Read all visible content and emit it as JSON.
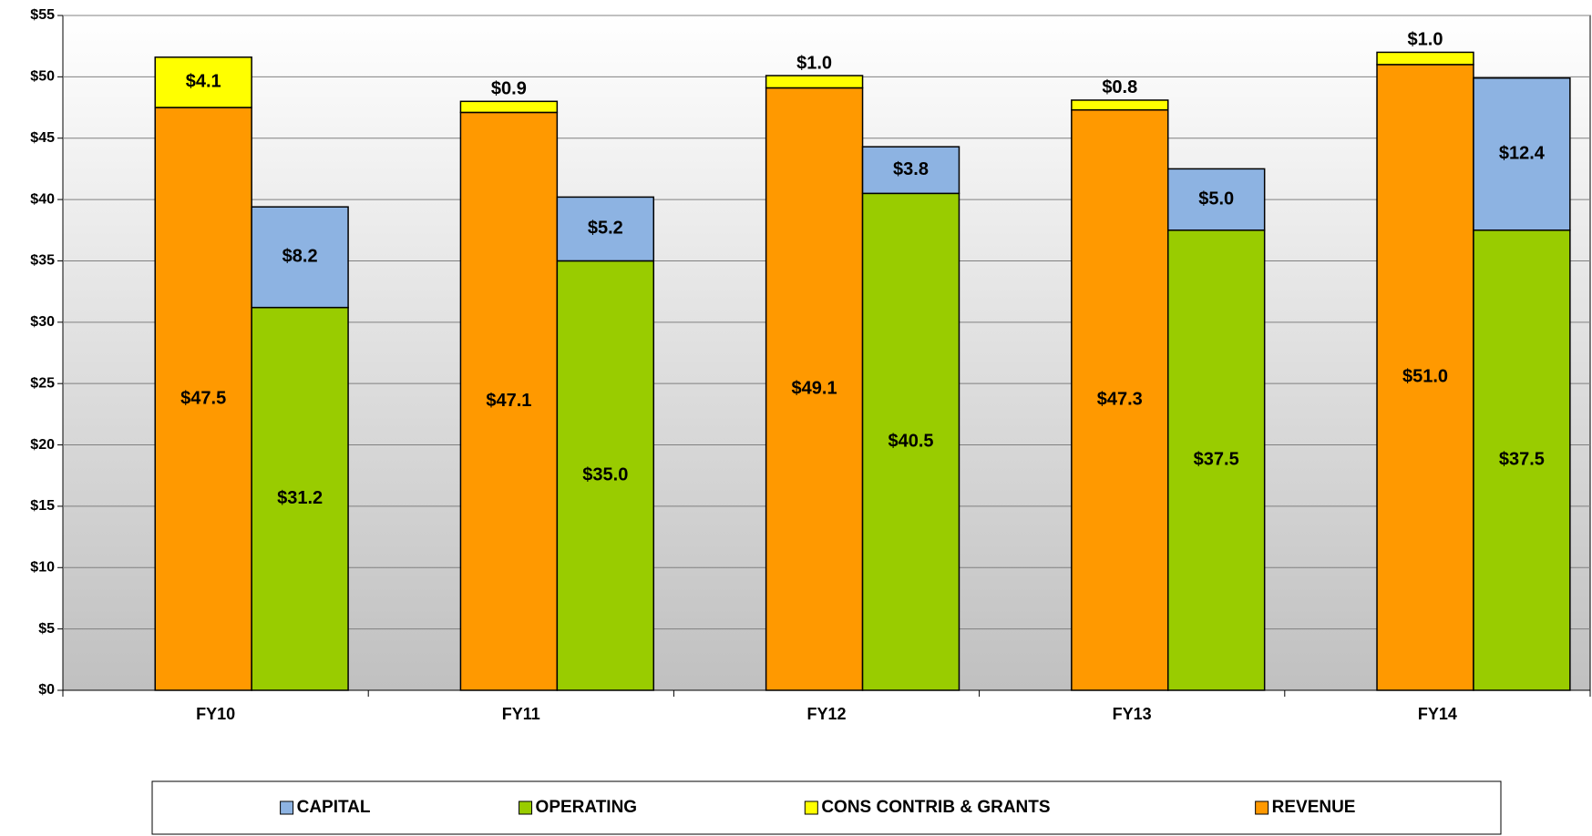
{
  "chart_data": {
    "type": "bar",
    "categories": [
      "FY10",
      "FY11",
      "FY12",
      "FY13",
      "FY14"
    ],
    "series": [
      {
        "name": "CAPITAL",
        "color": "#8db3e2",
        "stack": 1,
        "values": [
          8.2,
          5.2,
          3.8,
          5.0,
          12.4
        ],
        "value_labels": [
          "$8.2",
          "$5.2",
          "$3.8",
          "$5.0",
          "$12.4"
        ]
      },
      {
        "name": "OPERATING",
        "color": "#99cc00",
        "stack": 1,
        "values": [
          31.2,
          35.0,
          40.5,
          37.5,
          37.5
        ],
        "value_labels": [
          "$31.2",
          "$35.0",
          "$40.5",
          "$37.5",
          "$37.5"
        ]
      },
      {
        "name": "CONS CONTRIB & GRANTS",
        "color": "#ffff00",
        "stack": 0,
        "values": [
          4.1,
          0.9,
          1.0,
          0.8,
          1.0
        ],
        "value_labels": [
          "$4.1",
          "$0.9",
          "$1.0",
          "$0.8",
          "$1.0"
        ]
      },
      {
        "name": "REVENUE",
        "color": "#ff9900",
        "stack": 0,
        "values": [
          47.5,
          47.1,
          49.1,
          47.3,
          51.0
        ],
        "value_labels": [
          "$47.5",
          "$47.1",
          "$49.1",
          "$47.3",
          "$51.0"
        ]
      }
    ],
    "ylim": [
      0,
      55
    ],
    "yticks": [
      {
        "value": 0,
        "label": "$0"
      },
      {
        "value": 5,
        "label": "$5"
      },
      {
        "value": 10,
        "label": "$10"
      },
      {
        "value": 15,
        "label": "$15"
      },
      {
        "value": 20,
        "label": "$20"
      },
      {
        "value": 25,
        "label": "$25"
      },
      {
        "value": 30,
        "label": "$30"
      },
      {
        "value": 35,
        "label": "$35"
      },
      {
        "value": 40,
        "label": "$40"
      },
      {
        "value": 45,
        "label": "$45"
      },
      {
        "value": 50,
        "label": "$50"
      },
      {
        "value": 55,
        "label": "$55"
      }
    ],
    "grid": true,
    "legend": "bottom"
  }
}
